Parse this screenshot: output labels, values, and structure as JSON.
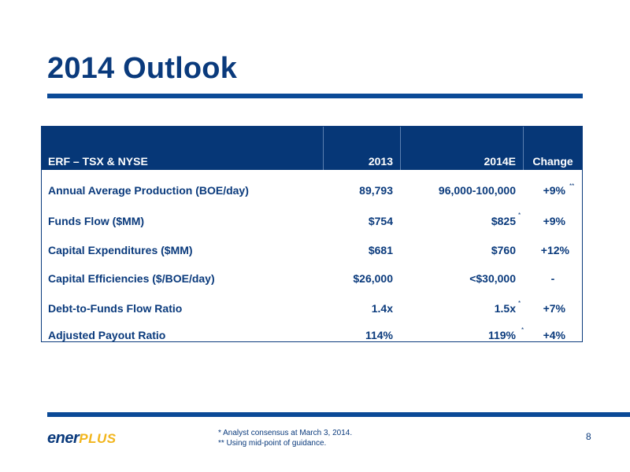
{
  "title": "2014 Outlook",
  "table": {
    "headers": {
      "metric": "ERF – TSX & NYSE",
      "y2013": "2013",
      "y2014": "2014E",
      "change": "Change"
    },
    "rows": [
      {
        "metric": "Annual Average Production (BOE/day)",
        "y2013": "89,793",
        "y2014": "96,000-100,000",
        "y2014_mark": "",
        "change": "+9%",
        "change_mark": "**"
      },
      {
        "metric": "Funds Flow ($MM)",
        "y2013": "$754",
        "y2014": "$825",
        "y2014_mark": "*",
        "change": "+9%",
        "change_mark": ""
      },
      {
        "metric": "Capital Expenditures ($MM)",
        "y2013": "$681",
        "y2014": "$760",
        "y2014_mark": "",
        "change": "+12%",
        "change_mark": ""
      },
      {
        "metric": "Capital Efficiencies ($/BOE/day)",
        "y2013": "$26,000",
        "y2014": "<$30,000",
        "y2014_mark": "",
        "change": "-",
        "change_mark": ""
      },
      {
        "metric": "Debt-to-Funds Flow Ratio",
        "y2013": "1.4x",
        "y2014": "1.5x",
        "y2014_mark": "*",
        "change": "+7%",
        "change_mark": ""
      },
      {
        "metric": "Adjusted Payout  Ratio",
        "y2013": "114%",
        "y2014": "119%",
        "y2014_mark": "*",
        "change": "+4%",
        "change_mark": ""
      }
    ]
  },
  "footer": {
    "logo_ener": "ener",
    "logo_plus": "PLUS",
    "footnote1": "* Analyst consensus at  March 3, 2014.",
    "footnote2": "** Using mid-point of guidance.",
    "page": "8"
  },
  "colors": {
    "brand_blue": "#0a3a7c",
    "header_blue": "#063777",
    "rule_blue": "#0b4a97",
    "logo_gold": "#f2b51c"
  }
}
